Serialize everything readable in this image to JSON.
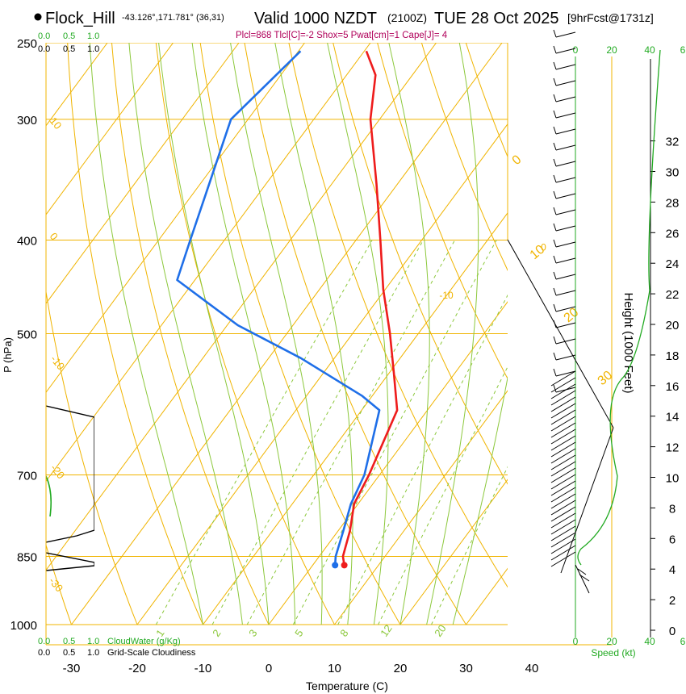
{
  "header": {
    "station": "Flock_Hill",
    "location": "-43.126°,171.781° (36,31)",
    "valid": "Valid 1000 NZDT",
    "utc": "(2100Z)",
    "date": "TUE 28 Oct 2025",
    "forecast": "[9hrFcst@1731z]",
    "params": "Plcl=868 Tlcl[C]=-2 Shox=5 Pwat[cm]=1 Cape[J]= 4"
  },
  "colors": {
    "temperature": "#ee1c1c",
    "dewpoint": "#1f6fe8",
    "isotherm": "#f0b400",
    "dry_adiabat": "#f0b400",
    "moist_adiabat": "#8cc83c",
    "mixing_ratio": "#8cc83c",
    "cloudwater": "#22aa22",
    "height": "#22aa22",
    "cloudiness": "#000000"
  },
  "chart_data": {
    "type": "line",
    "xlabel": "Temperature (C)",
    "ylabel": "P (hPa)",
    "right_label": "Height (1000 Feet)",
    "x_ticks": [
      -30,
      -20,
      -10,
      0,
      10,
      20,
      30,
      40
    ],
    "p_ticks": [
      250,
      300,
      400,
      500,
      700,
      850,
      1000
    ],
    "height_ticks": [
      0,
      2,
      4,
      6,
      8,
      10,
      12,
      14,
      16,
      18,
      20,
      22,
      24,
      26,
      28,
      30,
      32
    ],
    "p_range": [
      250,
      1000
    ],
    "isotherm_labels": [
      "-10",
      "0",
      "10",
      "20",
      "30",
      "40"
    ],
    "dry_adiabat_labels": [
      "0",
      "10",
      "20",
      "30"
    ],
    "skewed_temp_labels": [
      "10",
      "0",
      "-10",
      "-20",
      "-30"
    ],
    "mixing_ratio_labels": [
      "1",
      "2",
      "3",
      "5",
      "8",
      "12",
      "20"
    ],
    "series": [
      {
        "name": "temperature",
        "points": [
          [
            4.8,
            868
          ],
          [
            3.6,
            850
          ],
          [
            1.8,
            800
          ],
          [
            -0.6,
            750
          ],
          [
            -1.6,
            700
          ],
          [
            -4.6,
            600
          ],
          [
            -9.2,
            550
          ],
          [
            -14.3,
            500
          ],
          [
            -20.3,
            450
          ],
          [
            -26.3,
            400
          ],
          [
            -33.2,
            350
          ],
          [
            -41.4,
            300
          ],
          [
            -45.6,
            270
          ],
          [
            -49.7,
            255
          ]
        ]
      },
      {
        "name": "dewpoint",
        "points": [
          [
            3.4,
            868
          ],
          [
            2.5,
            850
          ],
          [
            0.8,
            800
          ],
          [
            -1.1,
            750
          ],
          [
            -2.3,
            700
          ],
          [
            -7.3,
            600
          ],
          [
            -11.5,
            580
          ],
          [
            -25.1,
            530
          ],
          [
            -38.4,
            490
          ],
          [
            -52.7,
            440
          ],
          [
            -55.2,
            400
          ],
          [
            -62.6,
            300
          ],
          [
            -59.7,
            255
          ]
        ]
      }
    ],
    "top_scale_labels": [
      "0.0",
      "0.5",
      "1.0"
    ],
    "bottom_cloudwater": {
      "ticks": [
        "0.0",
        "0.5",
        "1.0"
      ],
      "label": "CloudWater (g/Kg)"
    },
    "bottom_cloudiness": {
      "ticks": [
        "0.0",
        "0.5",
        "1.0"
      ],
      "label": "Grid-Scale Cloudiness"
    },
    "speed_scale": {
      "ticks": [
        "0",
        "20",
        "40",
        "6"
      ],
      "label": "Speed (kt)"
    }
  }
}
